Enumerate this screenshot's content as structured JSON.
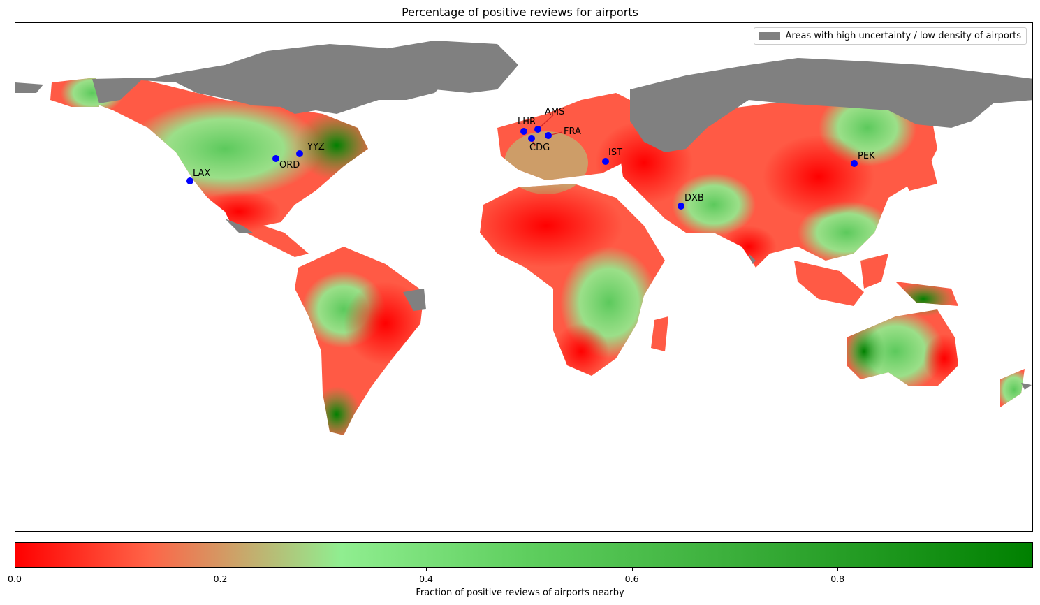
{
  "title": "Percentage of positive reviews for airports",
  "legend": {
    "label": "Areas with high uncertainty / low density of airports",
    "color": "#808080"
  },
  "colorbar": {
    "label": "Fraction of positive reviews of airports nearby",
    "ticks": [
      "0.0",
      "0.2",
      "0.4",
      "0.6",
      "0.8"
    ],
    "tick_values": [
      0.0,
      0.2,
      0.4,
      0.6,
      0.8
    ],
    "range": [
      0,
      0.99
    ],
    "colors": {
      "low": "#ff0000",
      "mid_low": "#ff6347",
      "mid": "#90ee90",
      "high": "#008000"
    }
  },
  "airports": [
    {
      "code": "LAX",
      "color": "#0000ff"
    },
    {
      "code": "ORD",
      "color": "#0000ff"
    },
    {
      "code": "YYZ",
      "color": "#0000ff"
    },
    {
      "code": "LHR",
      "color": "#0000ff"
    },
    {
      "code": "AMS",
      "color": "#0000ff"
    },
    {
      "code": "CDG",
      "color": "#0000ff"
    },
    {
      "code": "FRA",
      "color": "#0000ff"
    },
    {
      "code": "IST",
      "color": "#0000ff"
    },
    {
      "code": "DXB",
      "color": "#0000ff"
    },
    {
      "code": "PEK",
      "color": "#0000ff"
    }
  ]
}
